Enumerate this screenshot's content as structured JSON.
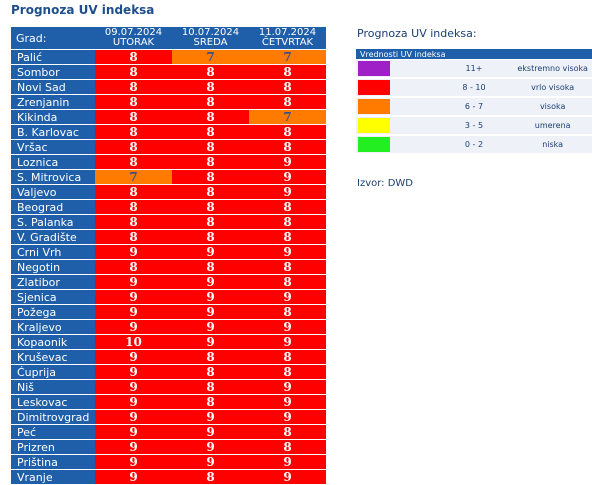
{
  "title": "Prognoza UV indeksa",
  "table": {
    "city_header": "Grad:",
    "days": [
      {
        "date": "09.07.2024",
        "weekday": "UTORAK"
      },
      {
        "date": "10.07.2024",
        "weekday": "SREDA"
      },
      {
        "date": "11.07.2024",
        "weekday": "ČETVRTAK"
      }
    ],
    "rows": [
      {
        "city": "Palić",
        "values": [
          "8",
          "7",
          "7"
        ]
      },
      {
        "city": "Sombor",
        "values": [
          "8",
          "8",
          "8"
        ]
      },
      {
        "city": "Novi Sad",
        "values": [
          "8",
          "8",
          "8"
        ]
      },
      {
        "city": "Zrenjanin",
        "values": [
          "8",
          "8",
          "8"
        ]
      },
      {
        "city": "Kikinda",
        "values": [
          "8",
          "8",
          "7"
        ]
      },
      {
        "city": "B. Karlovac",
        "values": [
          "8",
          "8",
          "8"
        ]
      },
      {
        "city": "Vršac",
        "values": [
          "8",
          "8",
          "8"
        ]
      },
      {
        "city": "Loznica",
        "values": [
          "8",
          "8",
          "9"
        ]
      },
      {
        "city": "S. Mitrovica",
        "values": [
          "7",
          "8",
          "9"
        ]
      },
      {
        "city": "Valjevo",
        "values": [
          "8",
          "8",
          "9"
        ]
      },
      {
        "city": "Beograd",
        "values": [
          "8",
          "8",
          "8"
        ]
      },
      {
        "city": "S. Palanka",
        "values": [
          "8",
          "8",
          "8"
        ]
      },
      {
        "city": "V. Gradište",
        "values": [
          "8",
          "8",
          "8"
        ]
      },
      {
        "city": "Crni Vrh",
        "values": [
          "9",
          "9",
          "9"
        ]
      },
      {
        "city": "Negotin",
        "values": [
          "8",
          "8",
          "8"
        ]
      },
      {
        "city": "Zlatibor",
        "values": [
          "9",
          "9",
          "8"
        ]
      },
      {
        "city": "Sjenica",
        "values": [
          "9",
          "9",
          "9"
        ]
      },
      {
        "city": "Požega",
        "values": [
          "9",
          "9",
          "8"
        ]
      },
      {
        "city": "Kraljevo",
        "values": [
          "9",
          "9",
          "9"
        ]
      },
      {
        "city": "Kopaonik",
        "values": [
          "10",
          "9",
          "9"
        ]
      },
      {
        "city": "Kruševac",
        "values": [
          "9",
          "8",
          "8"
        ]
      },
      {
        "city": "Ćuprija",
        "values": [
          "9",
          "8",
          "8"
        ]
      },
      {
        "city": "Niš",
        "values": [
          "9",
          "8",
          "9"
        ]
      },
      {
        "city": "Leskovac",
        "values": [
          "9",
          "8",
          "9"
        ]
      },
      {
        "city": "Dimitrovgrad",
        "values": [
          "9",
          "9",
          "9"
        ]
      },
      {
        "city": "Peć",
        "values": [
          "9",
          "9",
          "8"
        ]
      },
      {
        "city": "Prizren",
        "values": [
          "9",
          "9",
          "8"
        ]
      },
      {
        "city": "Priština",
        "values": [
          "9",
          "9",
          "9"
        ]
      },
      {
        "city": "Vranje",
        "values": [
          "9",
          "8",
          "9"
        ]
      }
    ]
  },
  "legend": {
    "title": "Prognoza UV indeksa:",
    "header": "Vrednosti UV indeksa",
    "items": [
      {
        "color": "#a020c8",
        "range": "11+",
        "label": "ekstremno visoka"
      },
      {
        "color": "#ff0000",
        "range": "8 - 10",
        "label": "vrlo visoka"
      },
      {
        "color": "#ff7b00",
        "range": "6 - 7",
        "label": "visoka"
      },
      {
        "color": "#ffff00",
        "range": "3 - 5",
        "label": "umerena"
      },
      {
        "color": "#22ee22",
        "range": "0 - 2",
        "label": "niska"
      }
    ]
  },
  "source": "Izvor: DWD"
}
